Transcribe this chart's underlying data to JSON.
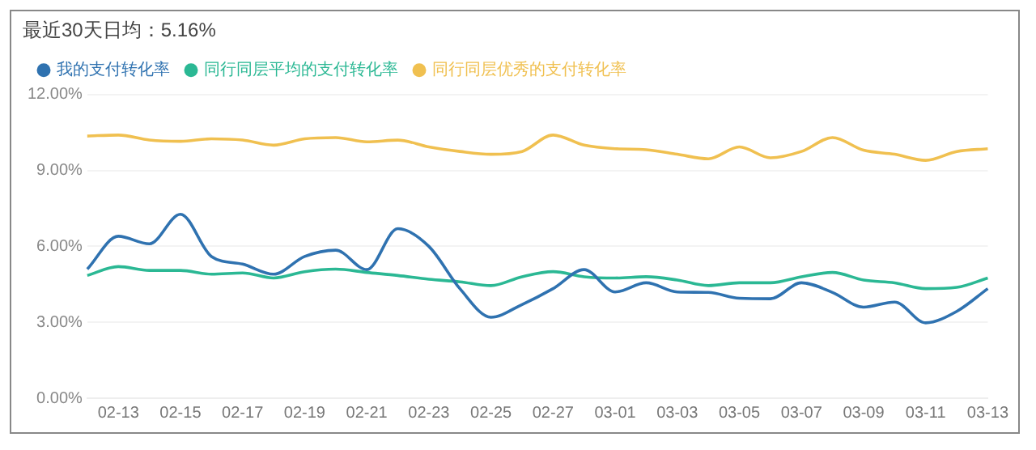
{
  "chart_data": {
    "type": "line",
    "title": "最近30天日均：5.16%",
    "categories": [
      null,
      "02-13",
      null,
      "02-15",
      null,
      "02-17",
      null,
      "02-19",
      null,
      "02-21",
      null,
      "02-23",
      null,
      "02-25",
      null,
      "02-27",
      null,
      "03-01",
      null,
      "03-03",
      null,
      "03-05",
      null,
      "03-07",
      null,
      "03-09",
      null,
      "03-11",
      null,
      "03-13"
    ],
    "series": [
      {
        "name": "我的支付转化率",
        "color": "#2f72b0",
        "values": [
          5.1,
          6.4,
          6.1,
          7.27,
          5.6,
          5.3,
          4.9,
          5.6,
          5.85,
          5.08,
          6.7,
          6.0,
          4.33,
          3.2,
          3.7,
          4.33,
          5.08,
          4.2,
          4.56,
          4.2,
          4.18,
          3.95,
          3.93,
          4.56,
          4.18,
          3.6,
          3.8,
          2.98,
          3.43,
          4.33
        ]
      },
      {
        "name": "同行同层平均的支付转化率",
        "color": "#2bb894",
        "values": [
          4.85,
          5.2,
          5.05,
          5.05,
          4.9,
          4.95,
          4.75,
          5.0,
          5.1,
          4.97,
          4.85,
          4.7,
          4.6,
          4.45,
          4.8,
          5.0,
          4.8,
          4.75,
          4.8,
          4.67,
          4.45,
          4.56,
          4.56,
          4.8,
          4.97,
          4.67,
          4.56,
          4.33,
          4.38,
          4.75
        ]
      },
      {
        "name": "同行同层优秀的支付转化率",
        "color": "#f0c050",
        "values": [
          10.36,
          10.4,
          10.2,
          10.15,
          10.25,
          10.2,
          10.0,
          10.25,
          10.3,
          10.13,
          10.2,
          9.93,
          9.75,
          9.64,
          9.75,
          10.4,
          10.0,
          9.86,
          9.82,
          9.64,
          9.46,
          9.93,
          9.5,
          9.75,
          10.3,
          9.8,
          9.64,
          9.4,
          9.75,
          9.86
        ]
      }
    ],
    "ylim": [
      0,
      12
    ],
    "yticks": [
      {
        "value": 0,
        "label": "0.00%"
      },
      {
        "value": 3,
        "label": "3.00%"
      },
      {
        "value": 6,
        "label": "6.00%"
      },
      {
        "value": 9,
        "label": "9.00%"
      },
      {
        "value": 12,
        "label": "12.00%"
      }
    ],
    "grid": "y",
    "legend": "top left",
    "marker": "none",
    "line_style": "solid"
  }
}
